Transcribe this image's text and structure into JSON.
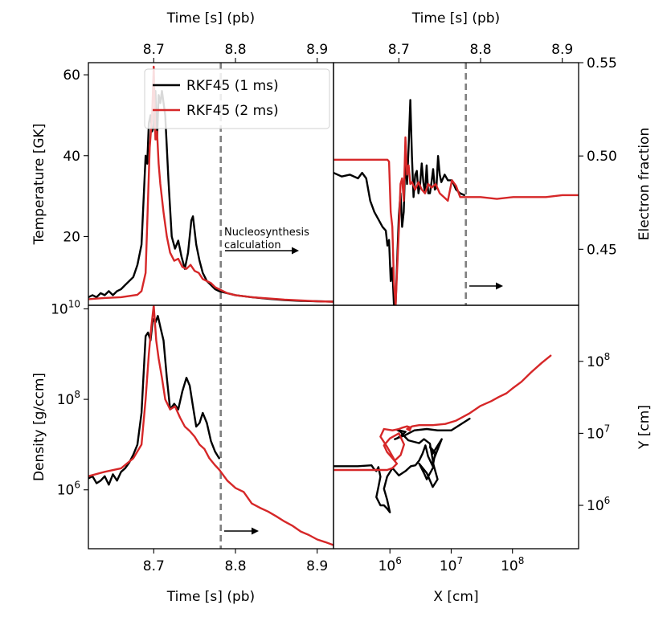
{
  "colors": {
    "rkf1": "#000000",
    "rkf2": "#d62728",
    "marker": "#808080"
  },
  "legend": [
    {
      "label": "RKF45 (1 ms)",
      "color": "#000000"
    },
    {
      "label": "RKF45 (2 ms)",
      "color": "#d62728"
    }
  ],
  "annotation": {
    "line1": "Nucleosynthesis",
    "line2": "calculation"
  },
  "chart_data": [
    {
      "id": "temperature",
      "type": "line",
      "xlabel_top": "Time [s] (pb)",
      "ylabel": "Temperature [GK]",
      "xlim": [
        8.62,
        8.92
      ],
      "ylim": [
        3,
        63
      ],
      "xticks": [
        8.7,
        8.8,
        8.9
      ],
      "xtick_labels": [
        "8.7",
        "8.8",
        "8.9"
      ],
      "yticks": [
        20,
        40,
        60
      ],
      "ytick_labels": [
        "20",
        "40",
        "60"
      ],
      "vline_x": 8.782,
      "series": [
        {
          "name": "RKF45 (1 ms)",
          "color": "#000000",
          "x": [
            8.62,
            8.625,
            8.63,
            8.635,
            8.64,
            8.645,
            8.65,
            8.655,
            8.66,
            8.665,
            8.67,
            8.675,
            8.68,
            8.685,
            8.69,
            8.692,
            8.694,
            8.696,
            8.698,
            8.7,
            8.702,
            8.704,
            8.706,
            8.708,
            8.71,
            8.714,
            8.718,
            8.722,
            8.726,
            8.73,
            8.734,
            8.738,
            8.742,
            8.746,
            8.748,
            8.752,
            8.756,
            8.76,
            8.765,
            8.77,
            8.775,
            8.78,
            8.79,
            8.8,
            8.82,
            8.84,
            8.86,
            8.88,
            8.9,
            8.92
          ],
          "y": [
            5,
            5.5,
            5,
            6,
            5.5,
            6.5,
            5.5,
            6.5,
            7,
            8,
            9,
            10,
            13,
            18,
            40,
            38,
            48,
            50,
            46,
            47,
            56,
            44,
            55,
            53,
            56,
            50,
            34,
            20,
            17,
            19,
            15,
            12,
            16,
            24,
            25,
            18,
            14,
            11,
            9,
            8,
            7,
            6.5,
            6,
            5.5,
            5,
            4.6,
            4.3,
            4.1,
            4,
            3.9
          ]
        },
        {
          "name": "RKF45 (2 ms)",
          "color": "#d62728",
          "x": [
            8.62,
            8.64,
            8.66,
            8.68,
            8.685,
            8.69,
            8.695,
            8.698,
            8.7,
            8.702,
            8.704,
            8.706,
            8.708,
            8.712,
            8.716,
            8.72,
            8.725,
            8.73,
            8.735,
            8.74,
            8.745,
            8.75,
            8.755,
            8.76,
            8.765,
            8.77,
            8.775,
            8.78,
            8.79,
            8.8,
            8.82,
            8.84,
            8.86,
            8.88,
            8.9,
            8.92
          ],
          "y": [
            4.5,
            4.8,
            5,
            5.6,
            6.5,
            11,
            42,
            50,
            62,
            44,
            46,
            38,
            33,
            26,
            20,
            16,
            14,
            14.5,
            12.5,
            12,
            13,
            11.5,
            11,
            9.5,
            9,
            8.5,
            7.5,
            7,
            6,
            5.5,
            5,
            4.7,
            4.4,
            4.2,
            4,
            3.9
          ]
        }
      ]
    },
    {
      "id": "electron-fraction",
      "type": "line",
      "xlabel_top": "Time [s] (pb)",
      "ylabel": "Electron fraction",
      "xlim": [
        8.62,
        8.92
      ],
      "ylim": [
        0.42,
        0.55
      ],
      "xticks": [
        8.7,
        8.8,
        8.9
      ],
      "xtick_labels": [
        "8.7",
        "8.8",
        "8.9"
      ],
      "yticks": [
        0.45,
        0.5,
        0.55
      ],
      "ytick_labels": [
        "0.45",
        "0.50",
        "0.55"
      ],
      "vline_x": 8.782,
      "series": [
        {
          "name": "RKF45 (1 ms)",
          "color": "#000000",
          "x": [
            8.62,
            8.63,
            8.64,
            8.65,
            8.655,
            8.66,
            8.665,
            8.67,
            8.675,
            8.68,
            8.684,
            8.686,
            8.688,
            8.69,
            8.692,
            8.694,
            8.696,
            8.698,
            8.7,
            8.702,
            8.704,
            8.706,
            8.708,
            8.71,
            8.712,
            8.714,
            8.716,
            8.718,
            8.72,
            8.722,
            8.724,
            8.726,
            8.728,
            8.73,
            8.732,
            8.734,
            8.736,
            8.738,
            8.74,
            8.742,
            8.744,
            8.746,
            8.748,
            8.75,
            8.752,
            8.756,
            8.76,
            8.765,
            8.77,
            8.775,
            8.78
          ],
          "y": [
            0.491,
            0.489,
            0.49,
            0.488,
            0.491,
            0.488,
            0.476,
            0.47,
            0.466,
            0.462,
            0.46,
            0.452,
            0.455,
            0.433,
            0.44,
            0.42,
            0.42,
            0.445,
            0.468,
            0.48,
            0.462,
            0.47,
            0.5,
            0.485,
            0.505,
            0.53,
            0.5,
            0.478,
            0.49,
            0.492,
            0.48,
            0.485,
            0.496,
            0.486,
            0.48,
            0.495,
            0.48,
            0.48,
            0.486,
            0.493,
            0.482,
            0.483,
            0.5,
            0.49,
            0.486,
            0.49,
            0.487,
            0.487,
            0.482,
            0.48,
            0.479
          ]
        },
        {
          "name": "RKF45 (2 ms)",
          "color": "#d62728",
          "x": [
            8.62,
            8.64,
            8.66,
            8.68,
            8.686,
            8.688,
            8.69,
            8.692,
            8.694,
            8.696,
            8.698,
            8.7,
            8.702,
            8.704,
            8.706,
            8.708,
            8.71,
            8.712,
            8.714,
            8.716,
            8.72,
            8.724,
            8.728,
            8.732,
            8.736,
            8.74,
            8.745,
            8.75,
            8.755,
            8.76,
            8.765,
            8.77,
            8.775,
            8.78,
            8.79,
            8.8,
            8.82,
            8.84,
            8.86,
            8.88,
            8.9,
            8.92
          ],
          "y": [
            0.498,
            0.498,
            0.498,
            0.498,
            0.498,
            0.497,
            0.47,
            0.462,
            0.432,
            0.42,
            0.44,
            0.46,
            0.485,
            0.488,
            0.476,
            0.51,
            0.49,
            0.495,
            0.485,
            0.486,
            0.482,
            0.486,
            0.482,
            0.48,
            0.485,
            0.483,
            0.485,
            0.48,
            0.478,
            0.476,
            0.487,
            0.484,
            0.478,
            0.478,
            0.478,
            0.478,
            0.477,
            0.478,
            0.478,
            0.478,
            0.479,
            0.479
          ]
        }
      ]
    },
    {
      "id": "density",
      "type": "line",
      "xlabel": "Time [s] (pb)",
      "ylabel": "Density [g/ccm]",
      "yscale": "log",
      "xlim": [
        8.62,
        8.92
      ],
      "ylim": [
        50000,
        12000000000
      ],
      "xticks": [
        8.7,
        8.8,
        8.9
      ],
      "xtick_labels": [
        "8.7",
        "8.8",
        "8.9"
      ],
      "yticks": [
        1000000,
        100000000,
        10000000000
      ],
      "ytick_labels": [
        {
          "base": "10",
          "exp": "6"
        },
        {
          "base": "10",
          "exp": "8"
        },
        {
          "base": "10",
          "exp": "10"
        }
      ],
      "vline_x": 8.782,
      "series": [
        {
          "name": "RKF45 (1 ms)",
          "color": "#000000",
          "x": [
            8.62,
            8.625,
            8.63,
            8.635,
            8.64,
            8.645,
            8.65,
            8.655,
            8.66,
            8.665,
            8.67,
            8.675,
            8.68,
            8.685,
            8.69,
            8.693,
            8.696,
            8.699,
            8.702,
            8.705,
            8.708,
            8.712,
            8.716,
            8.72,
            8.725,
            8.73,
            8.735,
            8.74,
            8.744,
            8.748,
            8.752,
            8.756,
            8.76,
            8.765,
            8.77,
            8.775,
            8.78
          ],
          "y": [
            1800000,
            2000000,
            1400000,
            1600000,
            2000000,
            1300000,
            2200000,
            1600000,
            2500000,
            3000000,
            4000000,
            6000000,
            10000000,
            50000000,
            2500000000,
            3000000000,
            2000000000,
            6000000000,
            5000000000,
            7000000000,
            4000000000,
            2000000000,
            300000000,
            60000000,
            80000000,
            60000000,
            150000000,
            300000000,
            200000000,
            70000000,
            25000000,
            30000000,
            50000000,
            30000000,
            12000000,
            7000000,
            5000000
          ]
        },
        {
          "name": "RKF45 (2 ms)",
          "color": "#d62728",
          "x": [
            8.62,
            8.64,
            8.66,
            8.675,
            8.685,
            8.69,
            8.694,
            8.697,
            8.7,
            8.703,
            8.706,
            8.71,
            8.714,
            8.72,
            8.726,
            8.732,
            8.738,
            8.744,
            8.75,
            8.756,
            8.762,
            8.768,
            8.775,
            8.78,
            8.79,
            8.8,
            8.81,
            8.82,
            8.83,
            8.84,
            8.85,
            8.86,
            8.87,
            8.88,
            8.89,
            8.9,
            8.91,
            8.92
          ],
          "y": [
            2000000,
            2500000,
            3000000,
            5000000,
            10000000,
            100000000,
            1000000000,
            4000000000,
            12000000000,
            2000000000,
            800000000,
            300000000,
            100000000,
            60000000,
            70000000,
            40000000,
            25000000,
            20000000,
            15000000,
            10000000,
            8000000,
            5000000,
            3500000,
            2800000,
            1600000,
            1100000,
            900000,
            500000,
            400000,
            330000,
            260000,
            200000,
            160000,
            120000,
            100000,
            80000,
            70000,
            60000
          ]
        }
      ]
    },
    {
      "id": "trajectory",
      "type": "line",
      "xlabel": "X [cm]",
      "ylabel": "Y [cm]",
      "xscale": "log",
      "yscale": "log",
      "xlim": [
        120000,
        1200000000
      ],
      "ylim": [
        250000,
        600000000
      ],
      "xticks": [
        1000000,
        10000000,
        100000000
      ],
      "xtick_labels": [
        {
          "base": "10",
          "exp": "6"
        },
        {
          "base": "10",
          "exp": "7"
        },
        {
          "base": "10",
          "exp": "8"
        }
      ],
      "yticks": [
        1000000,
        10000000,
        100000000
      ],
      "ytick_labels": [
        {
          "base": "10",
          "exp": "6"
        },
        {
          "base": "10",
          "exp": "7"
        },
        {
          "base": "10",
          "exp": "8"
        }
      ],
      "series": [
        {
          "name": "RKF45 (1 ms)",
          "color": "#000000",
          "x": [
            120000,
            300000,
            500000,
            550000,
            600000,
            650000,
            700000,
            650000,
            600000,
            700000,
            800000,
            900000,
            1000000,
            900000,
            800000,
            900000,
            1100000,
            1400000,
            1800000,
            2200000,
            2600000,
            3000000,
            3400000,
            3800000,
            4200000,
            5000000,
            5500000,
            4500000,
            5000000,
            5500000,
            7000000,
            5000000,
            6000000,
            5000000,
            4000000,
            3000000,
            3600000,
            4000000,
            5200000,
            4500000,
            3600000,
            3000000,
            2000000,
            1700000,
            1500000,
            1300000,
            1800000,
            1500000,
            1300000,
            1200000,
            1800000,
            2500000,
            4000000,
            6000000,
            10000000,
            20000000
          ],
          "y": [
            3500000,
            3500000,
            3600000,
            3200000,
            3000000,
            3400000,
            2500000,
            1800000,
            1300000,
            1000000,
            1000000,
            900000,
            800000,
            1200000,
            1700000,
            2500000,
            3300000,
            2600000,
            3000000,
            3500000,
            3600000,
            4200000,
            5200000,
            6800000,
            4800000,
            3500000,
            5400000,
            6500000,
            5200000,
            6000000,
            8300000,
            4000000,
            2300000,
            1800000,
            2800000,
            3800000,
            2800000,
            2300000,
            3500000,
            7200000,
            8300000,
            7300000,
            8000000,
            9200000,
            10500000,
            11200000,
            10500000,
            9200000,
            8500000,
            8300000,
            9500000,
            11000000,
            11500000,
            11000000,
            11000000,
            16000000
          ]
        },
        {
          "name": "RKF45 (2 ms)",
          "color": "#d62728",
          "x": [
            120000,
            300000,
            500000,
            700000,
            900000,
            1100000,
            1300000,
            1100000,
            900000,
            800000,
            1000000,
            1400000,
            1700000,
            1500000,
            1200000,
            900000,
            700000,
            800000,
            1100000,
            1400000,
            1600000,
            1900000,
            2200000,
            2100000,
            1900000,
            2300000,
            3000000,
            5000000,
            8000000,
            12000000,
            20000000,
            30000000,
            45000000,
            60000000,
            80000000,
            100000000,
            140000000,
            200000000,
            300000000,
            420000000
          ],
          "y": [
            3100000,
            3100000,
            3100000,
            3100000,
            3100000,
            3300000,
            3800000,
            4500000,
            5500000,
            6800000,
            8500000,
            10000000,
            7000000,
            5000000,
            4200000,
            6500000,
            9000000,
            11500000,
            11000000,
            11500000,
            12000000,
            12500000,
            12000000,
            11000000,
            11500000,
            12500000,
            13000000,
            13000000,
            13500000,
            15000000,
            19000000,
            24000000,
            28000000,
            32000000,
            36000000,
            42000000,
            52000000,
            70000000,
            95000000,
            120000000
          ]
        }
      ]
    }
  ]
}
